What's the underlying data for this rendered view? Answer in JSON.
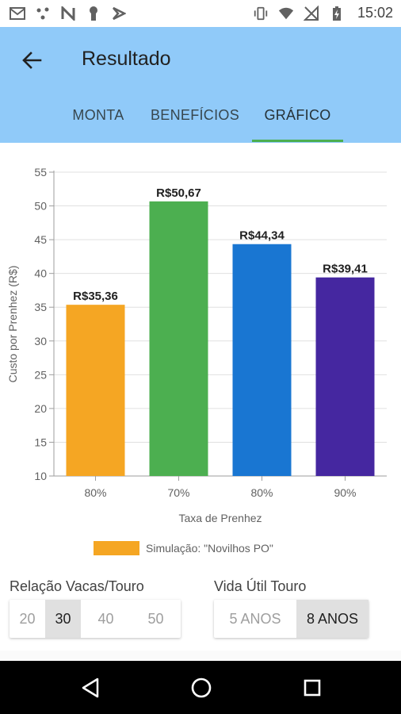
{
  "status_bar": {
    "time": "15:02",
    "left_icons": [
      "gmail-icon",
      "dots-icon",
      "n-icon",
      "keyhole-icon",
      "flag-icon"
    ],
    "right_icons": [
      "vibrate-icon",
      "wifi-icon",
      "no-signal-icon",
      "battery-charging-icon"
    ]
  },
  "app_bar": {
    "title": "Resultado",
    "back_icon": "arrow-back-icon",
    "color": "#90caf9"
  },
  "tabs": [
    {
      "label": "MONTA",
      "active": false
    },
    {
      "label": "BENEFÍCIOS",
      "active": false
    },
    {
      "label": "GRÁFICO",
      "active": true
    }
  ],
  "chart_data": {
    "type": "bar",
    "categories": [
      "80%",
      "70%",
      "80%",
      "90%"
    ],
    "values": [
      35.36,
      50.67,
      44.34,
      39.41
    ],
    "data_labels": [
      "R$35,36",
      "R$50,67",
      "R$44,34",
      "R$39,41"
    ],
    "colors": [
      "#f5a623",
      "#4caf50",
      "#1976d2",
      "#4527a0"
    ],
    "xlabel": "Taxa de Prenhez",
    "ylabel": "Custo por Prenhez (R$)",
    "ylim": [
      10,
      55
    ],
    "yticks": [
      10,
      15,
      20,
      25,
      30,
      35,
      40,
      45,
      50,
      55
    ],
    "grid": "horizontal",
    "legend": {
      "label": "Simulação: \"Novilhos PO\"",
      "color": "#f5a623",
      "placement": "bottom-center"
    }
  },
  "controls": {
    "relacao": {
      "label": "Relação Vacas/Touro",
      "options": [
        "20",
        "30",
        "40",
        "50"
      ],
      "selected": "30"
    },
    "vida_util": {
      "label": "Vida Útil Touro",
      "options": [
        "5 ANOS",
        "8 ANOS"
      ],
      "selected": "8 ANOS"
    }
  },
  "nav_bar": {
    "buttons": [
      "back-triangle-icon",
      "home-circle-icon",
      "recents-square-icon"
    ]
  }
}
